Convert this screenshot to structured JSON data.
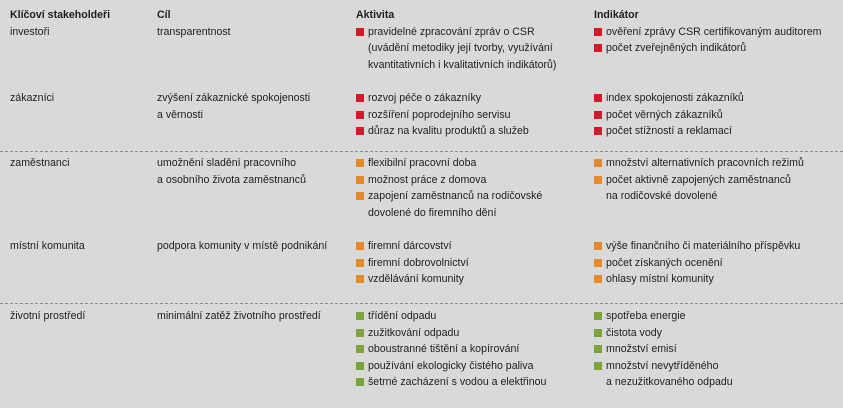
{
  "colors": {
    "red": "#d7182a",
    "orange": "#e58a2a",
    "green": "#7ba43c",
    "background": "#d9d9d9"
  },
  "headers": [
    "Klíčoví stakeholdeři",
    "Cíl",
    "Aktivita",
    "Indikátor"
  ],
  "rows": [
    {
      "stakeholder": "investoři",
      "goal": [
        "transparentnost"
      ],
      "color": "red",
      "activities": [
        [
          "pravidelné zpracování zpráv o CSR",
          "(uvádění metodiky její tvorby, využívání",
          "kvantitativních i kvalitativních indikátorů)"
        ]
      ],
      "indicators": [
        [
          "ověření zprávy CSR certifikovaným auditorem"
        ],
        [
          "počet zveřejněných indikátorů"
        ]
      ]
    },
    {
      "stakeholder": "zákazníci",
      "goal": [
        "zvýšení zákaznické spokojenosti",
        "a věrnosti"
      ],
      "color": "red",
      "activities": [
        [
          "rozvoj péče o zákazníky"
        ],
        [
          "rozšíření poprodejního servisu"
        ],
        [
          "důraz na kvalitu produktů a služeb"
        ]
      ],
      "indicators": [
        [
          "index spokojenosti zákazníků"
        ],
        [
          "počet věrných zákazníků"
        ],
        [
          "počet stížností a reklamací"
        ]
      ]
    },
    {
      "stakeholder": "zaměstnanci",
      "goal": [
        "umožnění sladění pracovního",
        "a osobního života zaměstnanců"
      ],
      "color": "orange",
      "activities": [
        [
          "flexibilní pracovní doba"
        ],
        [
          "možnost práce z domova"
        ],
        [
          "zapojení zaměstnanců na rodičovské",
          "dovolené do firemního dění"
        ]
      ],
      "indicators": [
        [
          "množství alternativních pracovních režimů"
        ],
        [
          "počet aktivně zapojených zaměstnanců",
          "na rodičovské dovolené"
        ]
      ]
    },
    {
      "stakeholder": "místní komunita",
      "goal": [
        "podpora komunity v místě podnikání"
      ],
      "color": "orange",
      "activities": [
        [
          "firemní dárcovství"
        ],
        [
          "firemní dobrovolnictví"
        ],
        [
          "vzdělávání komunity"
        ]
      ],
      "indicators": [
        [
          "výše finančního či materiálního příspěvku"
        ],
        [
          "počet získaných ocenění"
        ],
        [
          "ohlasy místní komunity"
        ]
      ]
    },
    {
      "stakeholder": "životní prostředí",
      "goal": [
        "minimální zatěž životního prostředí"
      ],
      "color": "green",
      "activities": [
        [
          "třídění odpadu"
        ],
        [
          "zužitkování odpadu"
        ],
        [
          "oboustranné tištění a kopírování"
        ],
        [
          "používání ekologicky čistého paliva"
        ],
        [
          "šetrné zacházení s vodou a elektřinou"
        ]
      ],
      "indicators": [
        [
          "spotřeba energie"
        ],
        [
          "čistota vody"
        ],
        [
          "množství emisí"
        ],
        [
          "množství nevytříděného",
          "a nezužitkovaného odpadu"
        ]
      ]
    }
  ]
}
